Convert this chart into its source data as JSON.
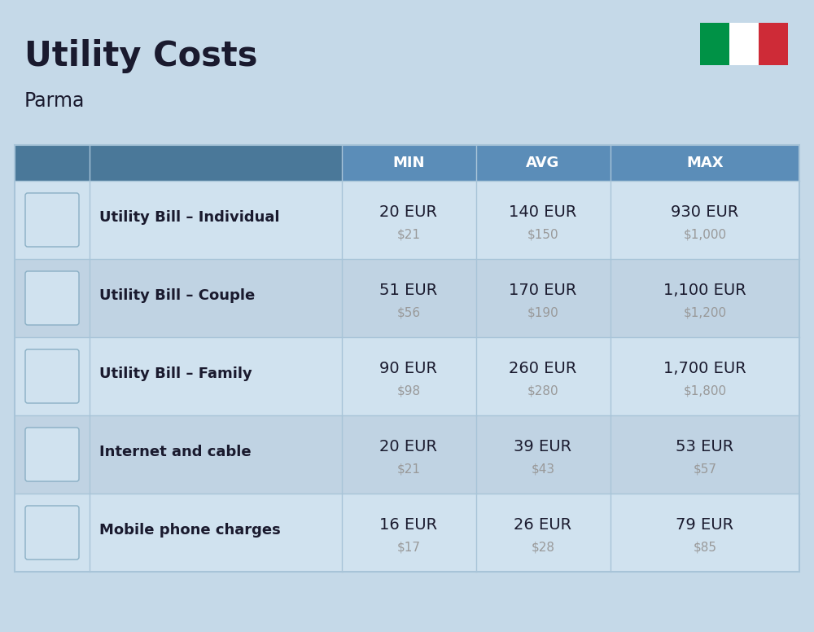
{
  "title": "Utility Costs",
  "subtitle": "Parma",
  "background_color": "#c5d9e8",
  "header_color": "#5b8db8",
  "header_text_color": "#ffffff",
  "row_color_odd": "#d0e2ef",
  "row_color_even": "#c0d3e3",
  "categories": [
    "Utility Bill – Individual",
    "Utility Bill – Couple",
    "Utility Bill – Family",
    "Internet and cable",
    "Mobile phone charges"
  ],
  "min_eur": [
    "20 EUR",
    "51 EUR",
    "90 EUR",
    "20 EUR",
    "16 EUR"
  ],
  "min_usd": [
    "$21",
    "$56",
    "$98",
    "$21",
    "$17"
  ],
  "avg_eur": [
    "140 EUR",
    "170 EUR",
    "260 EUR",
    "39 EUR",
    "26 EUR"
  ],
  "avg_usd": [
    "$150",
    "$190",
    "$280",
    "$43",
    "$28"
  ],
  "max_eur": [
    "930 EUR",
    "1,100 EUR",
    "1,700 EUR",
    "53 EUR",
    "79 EUR"
  ],
  "max_usd": [
    "$1,000",
    "$1,200",
    "$1,800",
    "$57",
    "$85"
  ],
  "col_headers": [
    "MIN",
    "AVG",
    "MAX"
  ],
  "flag_colors": [
    "#009246",
    "#ffffff",
    "#ce2b37"
  ],
  "text_color_dark": "#1a1a2e",
  "text_color_usd": "#999999",
  "title_fontsize": 30,
  "subtitle_fontsize": 17,
  "header_fontsize": 13,
  "label_fontsize": 13,
  "value_fontsize": 14,
  "usd_fontsize": 11,
  "divider_color": "#a8c4d8"
}
